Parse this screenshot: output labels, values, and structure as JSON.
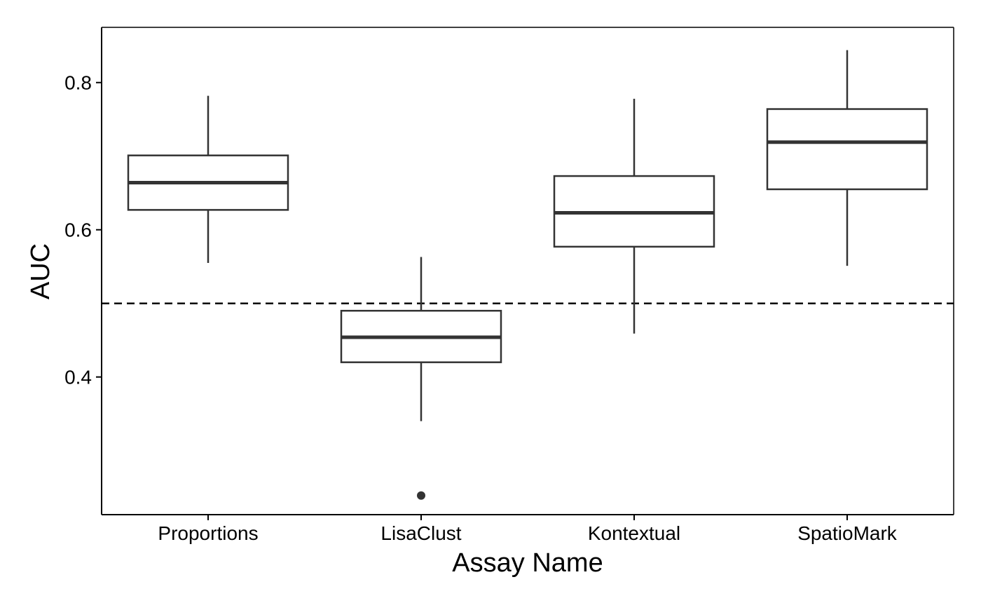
{
  "chart_data": {
    "type": "boxplot",
    "title": "",
    "xlabel": "Assay Name",
    "ylabel": "AUC",
    "ylim": [
      0.213,
      0.875
    ],
    "y_ticks": [
      0.4,
      0.6,
      0.8
    ],
    "y_tick_labels": [
      "0.4",
      "0.6",
      "0.8"
    ],
    "reference_line": {
      "y": 0.5,
      "style": "dashed"
    },
    "grid": false,
    "legend": "none",
    "categories": [
      "Proportions",
      "LisaClust",
      "Kontextual",
      "SpatioMark"
    ],
    "boxes": [
      {
        "category": "Proportions",
        "whisker_low": 0.555,
        "q1": 0.627,
        "median": 0.664,
        "q3": 0.701,
        "whisker_high": 0.782,
        "outliers": []
      },
      {
        "category": "LisaClust",
        "whisker_low": 0.34,
        "q1": 0.42,
        "median": 0.454,
        "q3": 0.49,
        "whisker_high": 0.563,
        "outliers": [
          0.239
        ]
      },
      {
        "category": "Kontextual",
        "whisker_low": 0.459,
        "q1": 0.577,
        "median": 0.623,
        "q3": 0.673,
        "whisker_high": 0.778,
        "outliers": []
      },
      {
        "category": "SpatioMark",
        "whisker_low": 0.551,
        "q1": 0.655,
        "median": 0.719,
        "q3": 0.764,
        "whisker_high": 0.844,
        "outliers": []
      }
    ],
    "colors": {
      "box_stroke": "#333333",
      "box_fill": "#ffffff",
      "axis": "#000000",
      "reference_line": "#000000"
    }
  }
}
